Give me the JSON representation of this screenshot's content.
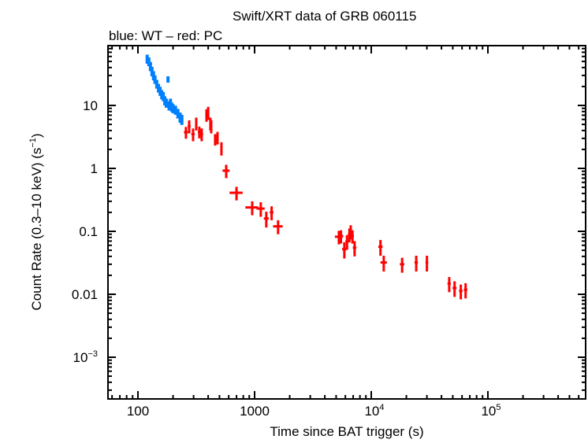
{
  "chart_data": {
    "type": "scatter",
    "title": "Swift/XRT data of GRB 060115",
    "subtitle": "blue: WT – red: PC",
    "xlabel": "Time since BAT trigger (s)",
    "ylabel": "Count Rate (0.3–10 keV) (s",
    "ylabel_sup": "−1",
    "ylabel_end": ")",
    "xscale": "log",
    "yscale": "log",
    "xlim": [
      55,
      690000
    ],
    "ylim": [
      0.0001,
      89
    ],
    "grid": false,
    "x_ticks": [
      {
        "value": 100,
        "label": "100",
        "exp": ""
      },
      {
        "value": 1000,
        "label": "1000",
        "exp": ""
      },
      {
        "value": 10000,
        "label": "10",
        "exp": "4"
      },
      {
        "value": 100000,
        "label": "10",
        "exp": "5"
      }
    ],
    "y_ticks": [
      {
        "value": 0.001,
        "label": "10",
        "exp": "−3"
      },
      {
        "value": 0.01,
        "label": "0.01",
        "exp": ""
      },
      {
        "value": 0.1,
        "label": "0.1",
        "exp": ""
      },
      {
        "value": 1,
        "label": "1",
        "exp": ""
      },
      {
        "value": 10,
        "label": "10",
        "exp": ""
      }
    ],
    "series": [
      {
        "mode": "WT",
        "color": "#0080ff",
        "points": [
          [
            120,
            55,
            3,
            9
          ],
          [
            124,
            50,
            3,
            8
          ],
          [
            128,
            42,
            3,
            7
          ],
          [
            132,
            35,
            3,
            6
          ],
          [
            136,
            30,
            3,
            5
          ],
          [
            140,
            26,
            3,
            4
          ],
          [
            145,
            22,
            3,
            3.5
          ],
          [
            150,
            19,
            3,
            3
          ],
          [
            155,
            17,
            3,
            2.8
          ],
          [
            160,
            15,
            3,
            2.5
          ],
          [
            165,
            14,
            3,
            2.3
          ],
          [
            170,
            12,
            3,
            2
          ],
          [
            175,
            11,
            3,
            1.8
          ],
          [
            181,
            26,
            2,
            3
          ],
          [
            185,
            10,
            3,
            1.7
          ],
          [
            190,
            11,
            3,
            1.8
          ],
          [
            195,
            9.5,
            3,
            1.6
          ],
          [
            200,
            9,
            3,
            1.5
          ],
          [
            210,
            8.5,
            3,
            1.4
          ],
          [
            220,
            7.5,
            3,
            1.3
          ],
          [
            230,
            6.5,
            3,
            1.2
          ],
          [
            238,
            6,
            3,
            1.1
          ]
        ]
      },
      {
        "mode": "PC",
        "color": "#ff0000",
        "points": [
          [
            258,
            3.76,
            10,
            0.8
          ],
          [
            275,
            4.7,
            8,
            1.1
          ],
          [
            297,
            3.5,
            10,
            0.8
          ],
          [
            316,
            5.2,
            7,
            1.2
          ],
          [
            336,
            3.8,
            10,
            0.8
          ],
          [
            352,
            3.5,
            10,
            0.8
          ],
          [
            387,
            7.1,
            8,
            1.6
          ],
          [
            400,
            7.7,
            7,
            1.8
          ],
          [
            418,
            5.2,
            8,
            1.2
          ],
          [
            425,
            4.7,
            8,
            1.1
          ],
          [
            459,
            2.9,
            10,
            0.6
          ],
          [
            481,
            3.1,
            8,
            0.7
          ],
          [
            520,
            2.1,
            12,
            0.5
          ],
          [
            571,
            0.92,
            40,
            0.22
          ],
          [
            700,
            0.41,
            90,
            0.1
          ],
          [
            954,
            0.24,
            120,
            0.06
          ],
          [
            1130,
            0.23,
            90,
            0.06
          ],
          [
            1260,
            0.16,
            60,
            0.045
          ],
          [
            1400,
            0.2,
            50,
            0.05
          ],
          [
            1590,
            0.12,
            150,
            0.03
          ],
          [
            5280,
            0.082,
            400,
            0.02
          ],
          [
            5500,
            0.084,
            250,
            0.02
          ],
          [
            5880,
            0.052,
            250,
            0.015
          ],
          [
            6200,
            0.069,
            200,
            0.018
          ],
          [
            6500,
            0.089,
            200,
            0.022
          ],
          [
            6670,
            0.1,
            150,
            0.025
          ],
          [
            6900,
            0.084,
            200,
            0.02
          ],
          [
            7200,
            0.055,
            250,
            0.015
          ],
          [
            12000,
            0.057,
            500,
            0.016
          ],
          [
            12800,
            0.032,
            800,
            0.009
          ],
          [
            18400,
            0.03,
            800,
            0.008
          ],
          [
            24300,
            0.032,
            800,
            0.009
          ],
          [
            30000,
            0.032,
            800,
            0.009
          ],
          [
            46600,
            0.0148,
            1500,
            0.004
          ],
          [
            51800,
            0.0126,
            2000,
            0.0035
          ],
          [
            58600,
            0.0113,
            2000,
            0.003
          ],
          [
            64400,
            0.0118,
            2200,
            0.0032
          ]
        ]
      }
    ]
  }
}
